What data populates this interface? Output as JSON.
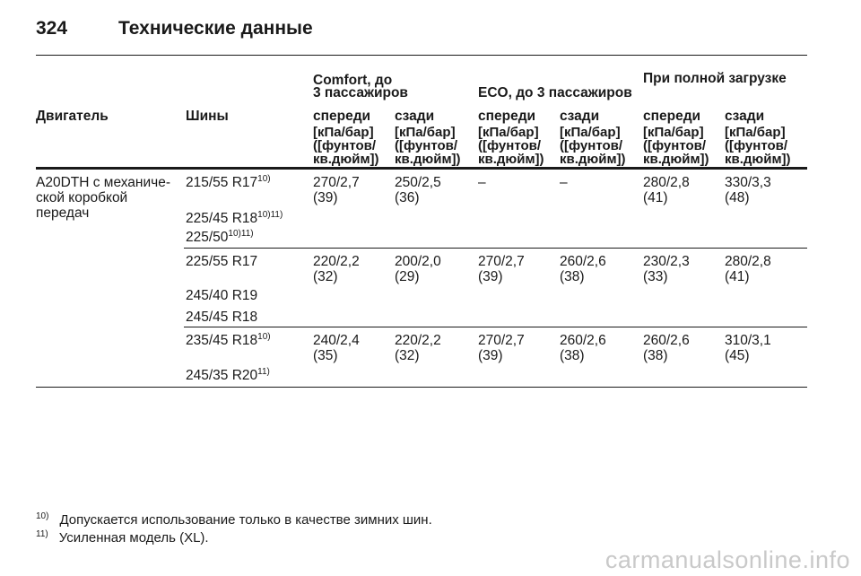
{
  "header": {
    "page_number": "324",
    "title": "Технические данные"
  },
  "table": {
    "groups": [
      {
        "line1": "Comfort, до",
        "line2": "3 пассажиров"
      },
      {
        "label": "ECO, до 3 пассажиров"
      },
      {
        "label": "При полной загрузке"
      }
    ],
    "columns": {
      "engine": "Двигатель",
      "tires": "Шины",
      "sub": [
        "спереди",
        "сзади",
        "спереди",
        "сзади",
        "спереди",
        "сзади"
      ]
    },
    "unit_label": "[кПа/бар]\n([фунтов/\nкв.дюйм])",
    "engine_value": {
      "line1": "A20DTH с механиче-",
      "line2": "ской коробкой",
      "line3": "передач"
    },
    "rows": [
      {
        "tires": [
          {
            "size": "215/55 R17",
            "note": "10)"
          },
          {
            "size": "225/45 R18",
            "note": "10)11)"
          },
          {
            "size": "225/50",
            "note": "10)11)"
          }
        ],
        "values": [
          {
            "a": "270/2,7",
            "b": "(39)"
          },
          {
            "a": "250/2,5",
            "b": "(36)"
          },
          {
            "a": "–",
            "b": ""
          },
          {
            "a": "–",
            "b": ""
          },
          {
            "a": "280/2,8",
            "b": "(41)"
          },
          {
            "a": "330/3,3",
            "b": "(48)"
          }
        ]
      },
      {
        "tires": [
          {
            "size": "225/55 R17",
            "note": ""
          },
          {
            "size": "245/40 R19",
            "note": ""
          },
          {
            "size": "245/45 R18",
            "note": ""
          }
        ],
        "values": [
          {
            "a": "220/2,2",
            "b": "(32)"
          },
          {
            "a": "200/2,0",
            "b": "(29)"
          },
          {
            "a": "270/2,7",
            "b": "(39)"
          },
          {
            "a": "260/2,6",
            "b": "(38)"
          },
          {
            "a": "230/2,3",
            "b": "(33)"
          },
          {
            "a": "280/2,8",
            "b": "(41)"
          }
        ]
      },
      {
        "tires": [
          {
            "size": "235/45 R18",
            "note": "10)"
          },
          {
            "size": "245/35 R20",
            "note": "11)"
          }
        ],
        "values": [
          {
            "a": "240/2,4",
            "b": "(35)"
          },
          {
            "a": "220/2,2",
            "b": "(32)"
          },
          {
            "a": "270/2,7",
            "b": "(39)"
          },
          {
            "a": "260/2,6",
            "b": "(38)"
          },
          {
            "a": "260/2,6",
            "b": "(38)"
          },
          {
            "a": "310/3,1",
            "b": "(45)"
          }
        ]
      }
    ]
  },
  "footnotes": [
    {
      "mark": "10)",
      "text": "Допускается использование только в качестве зимних шин."
    },
    {
      "mark": "11)",
      "text": "Усиленная модель (XL)."
    }
  ],
  "watermark": "carmanualsonline.info"
}
